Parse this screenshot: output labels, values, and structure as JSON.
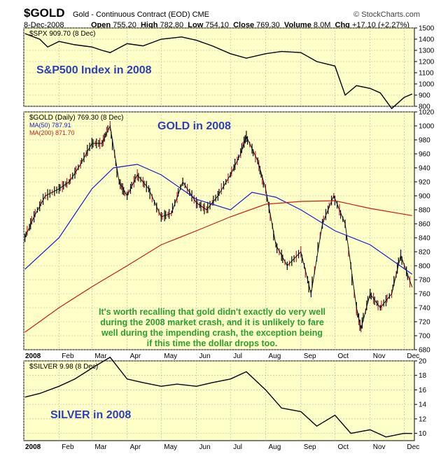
{
  "header": {
    "symbol": "$GOLD",
    "description": "Gold - Continuous Contract (EOD) CME",
    "date": "8-Dec-2008",
    "open_label": "Open",
    "open": "755.20",
    "high_label": "High",
    "high": "782.80",
    "low_label": "Low",
    "low": "754.10",
    "close_label": "Close",
    "close": "769.30",
    "volume_label": "Volume",
    "volume": "8.0M",
    "chg_label": "Chg",
    "chg": "+17.10 (+2.27%)",
    "brand": "© StockCharts.com"
  },
  "colors": {
    "panel_bg": "#ffffc8",
    "grid": "#b4b4b4",
    "price": "#000000",
    "ma50": "#1a1acc",
    "ma200": "#cc1a1a",
    "up_bar": "#000000",
    "down_bar": "#cc1a3a",
    "annotation_blue": "#2e3fb6",
    "annotation_green": "#2e9e2e"
  },
  "annotations": {
    "spx_title": "S&P500 Index in 2008",
    "gold_title": "GOLD in 2008",
    "silver_title": "SILVER in 2008",
    "commentary": [
      "It's worth recalling that gold didn't exactly do very well",
      "during the 2008 market crash, and it is unlikely to fare",
      "well during the impending crash, the exception being",
      "if this time the dollar drops too."
    ]
  },
  "chart_data": [
    {
      "type": "line",
      "panel": "spx",
      "legend": "$SPX 909.70 (8 Dec)",
      "ylim": [
        800,
        1500
      ],
      "yticks": [
        800,
        900,
        1000,
        1100,
        1200,
        1300,
        1400,
        1500
      ],
      "x": [
        "2008-01-02",
        "2008-01-15",
        "2008-01-22",
        "2008-02-01",
        "2008-02-15",
        "2008-03-01",
        "2008-03-10",
        "2008-03-17",
        "2008-04-01",
        "2008-04-15",
        "2008-05-01",
        "2008-05-19",
        "2008-06-01",
        "2008-06-15",
        "2008-07-01",
        "2008-07-15",
        "2008-08-01",
        "2008-08-15",
        "2008-09-01",
        "2008-09-15",
        "2008-10-01",
        "2008-10-10",
        "2008-10-20",
        "2008-11-01",
        "2008-11-10",
        "2008-11-20",
        "2008-12-01",
        "2008-12-08"
      ],
      "values": [
        1450,
        1400,
        1330,
        1380,
        1350,
        1330,
        1300,
        1280,
        1360,
        1340,
        1400,
        1420,
        1390,
        1340,
        1270,
        1230,
        1270,
        1290,
        1280,
        1200,
        1160,
        900,
        985,
        960,
        920,
        780,
        880,
        909.7
      ]
    },
    {
      "type": "line",
      "panel": "gold",
      "legend": [
        "$GOLD (Daily) 769.30 (8 Dec)",
        "MA(50) 787.91",
        "MA(200) 871.70"
      ],
      "ylim": [
        680,
        1020
      ],
      "yticks": [
        680,
        700,
        720,
        740,
        760,
        780,
        800,
        820,
        840,
        860,
        880,
        900,
        920,
        940,
        960,
        980,
        1000,
        1020
      ],
      "series": [
        {
          "name": "$GOLD (Daily)",
          "x": [
            "2008-01-02",
            "2008-01-10",
            "2008-01-20",
            "2008-02-01",
            "2008-02-10",
            "2008-02-20",
            "2008-03-01",
            "2008-03-10",
            "2008-03-17",
            "2008-03-25",
            "2008-04-01",
            "2008-04-10",
            "2008-04-20",
            "2008-05-01",
            "2008-05-10",
            "2008-05-20",
            "2008-06-01",
            "2008-06-10",
            "2008-06-20",
            "2008-07-01",
            "2008-07-10",
            "2008-07-15",
            "2008-07-25",
            "2008-08-01",
            "2008-08-10",
            "2008-08-20",
            "2008-09-01",
            "2008-09-10",
            "2008-09-20",
            "2008-09-30",
            "2008-10-10",
            "2008-10-20",
            "2008-10-24",
            "2008-11-01",
            "2008-11-10",
            "2008-11-20",
            "2008-11-28",
            "2008-12-08"
          ],
          "values": [
            840,
            870,
            900,
            910,
            920,
            945,
            975,
            975,
            1000,
            920,
            900,
            930,
            910,
            870,
            875,
            920,
            890,
            880,
            900,
            930,
            960,
            985,
            950,
            910,
            830,
            800,
            820,
            760,
            860,
            900,
            860,
            740,
            710,
            760,
            740,
            760,
            815,
            769.3
          ]
        },
        {
          "name": "MA(50)",
          "x": [
            "2008-01-02",
            "2008-02-01",
            "2008-03-01",
            "2008-03-20",
            "2008-04-10",
            "2008-05-01",
            "2008-06-01",
            "2008-07-01",
            "2008-07-20",
            "2008-08-10",
            "2008-09-01",
            "2008-10-01",
            "2008-11-01",
            "2008-12-08"
          ],
          "values": [
            795,
            840,
            910,
            940,
            945,
            930,
            895,
            880,
            905,
            898,
            880,
            850,
            830,
            787.91
          ]
        },
        {
          "name": "MA(200)",
          "x": [
            "2008-01-02",
            "2008-02-01",
            "2008-03-01",
            "2008-04-01",
            "2008-05-01",
            "2008-06-01",
            "2008-07-01",
            "2008-08-01",
            "2008-09-01",
            "2008-10-01",
            "2008-11-01",
            "2008-12-08"
          ],
          "values": [
            705,
            740,
            770,
            800,
            830,
            850,
            870,
            888,
            892,
            893,
            882,
            871.7
          ]
        }
      ]
    },
    {
      "type": "line",
      "panel": "silver",
      "legend": "$SILVER 9.98 (8 Dec)",
      "ylim": [
        9,
        20
      ],
      "yticks": [
        10,
        12,
        14,
        16,
        18,
        20
      ],
      "x": [
        "2008-01-02",
        "2008-01-15",
        "2008-02-01",
        "2008-02-15",
        "2008-03-01",
        "2008-03-17",
        "2008-04-01",
        "2008-04-15",
        "2008-05-01",
        "2008-05-15",
        "2008-06-01",
        "2008-06-15",
        "2008-07-01",
        "2008-07-15",
        "2008-08-01",
        "2008-08-15",
        "2008-09-01",
        "2008-09-15",
        "2008-10-01",
        "2008-10-15",
        "2008-11-01",
        "2008-11-15",
        "2008-12-01",
        "2008-12-08"
      ],
      "values": [
        15.0,
        15.5,
        16.5,
        17.5,
        19.0,
        20.5,
        17.5,
        17.0,
        16.5,
        16.8,
        16.5,
        17.0,
        17.5,
        18.5,
        16.0,
        13.5,
        13.0,
        11.0,
        12.5,
        10.0,
        10.5,
        9.5,
        10.0,
        9.98
      ]
    }
  ],
  "x_axis": {
    "labels": [
      "2008",
      "Feb",
      "Mar",
      "Apr",
      "May",
      "Jun",
      "Jul",
      "Aug",
      "Sep",
      "Oct",
      "Nov",
      "Dec"
    ],
    "dates": [
      "2008-01-01",
      "2008-02-01",
      "2008-03-01",
      "2008-04-01",
      "2008-05-01",
      "2008-06-01",
      "2008-07-01",
      "2008-08-01",
      "2008-09-01",
      "2008-10-01",
      "2008-11-01",
      "2008-12-01"
    ],
    "start": "2008-01-01",
    "end": "2008-12-10"
  }
}
